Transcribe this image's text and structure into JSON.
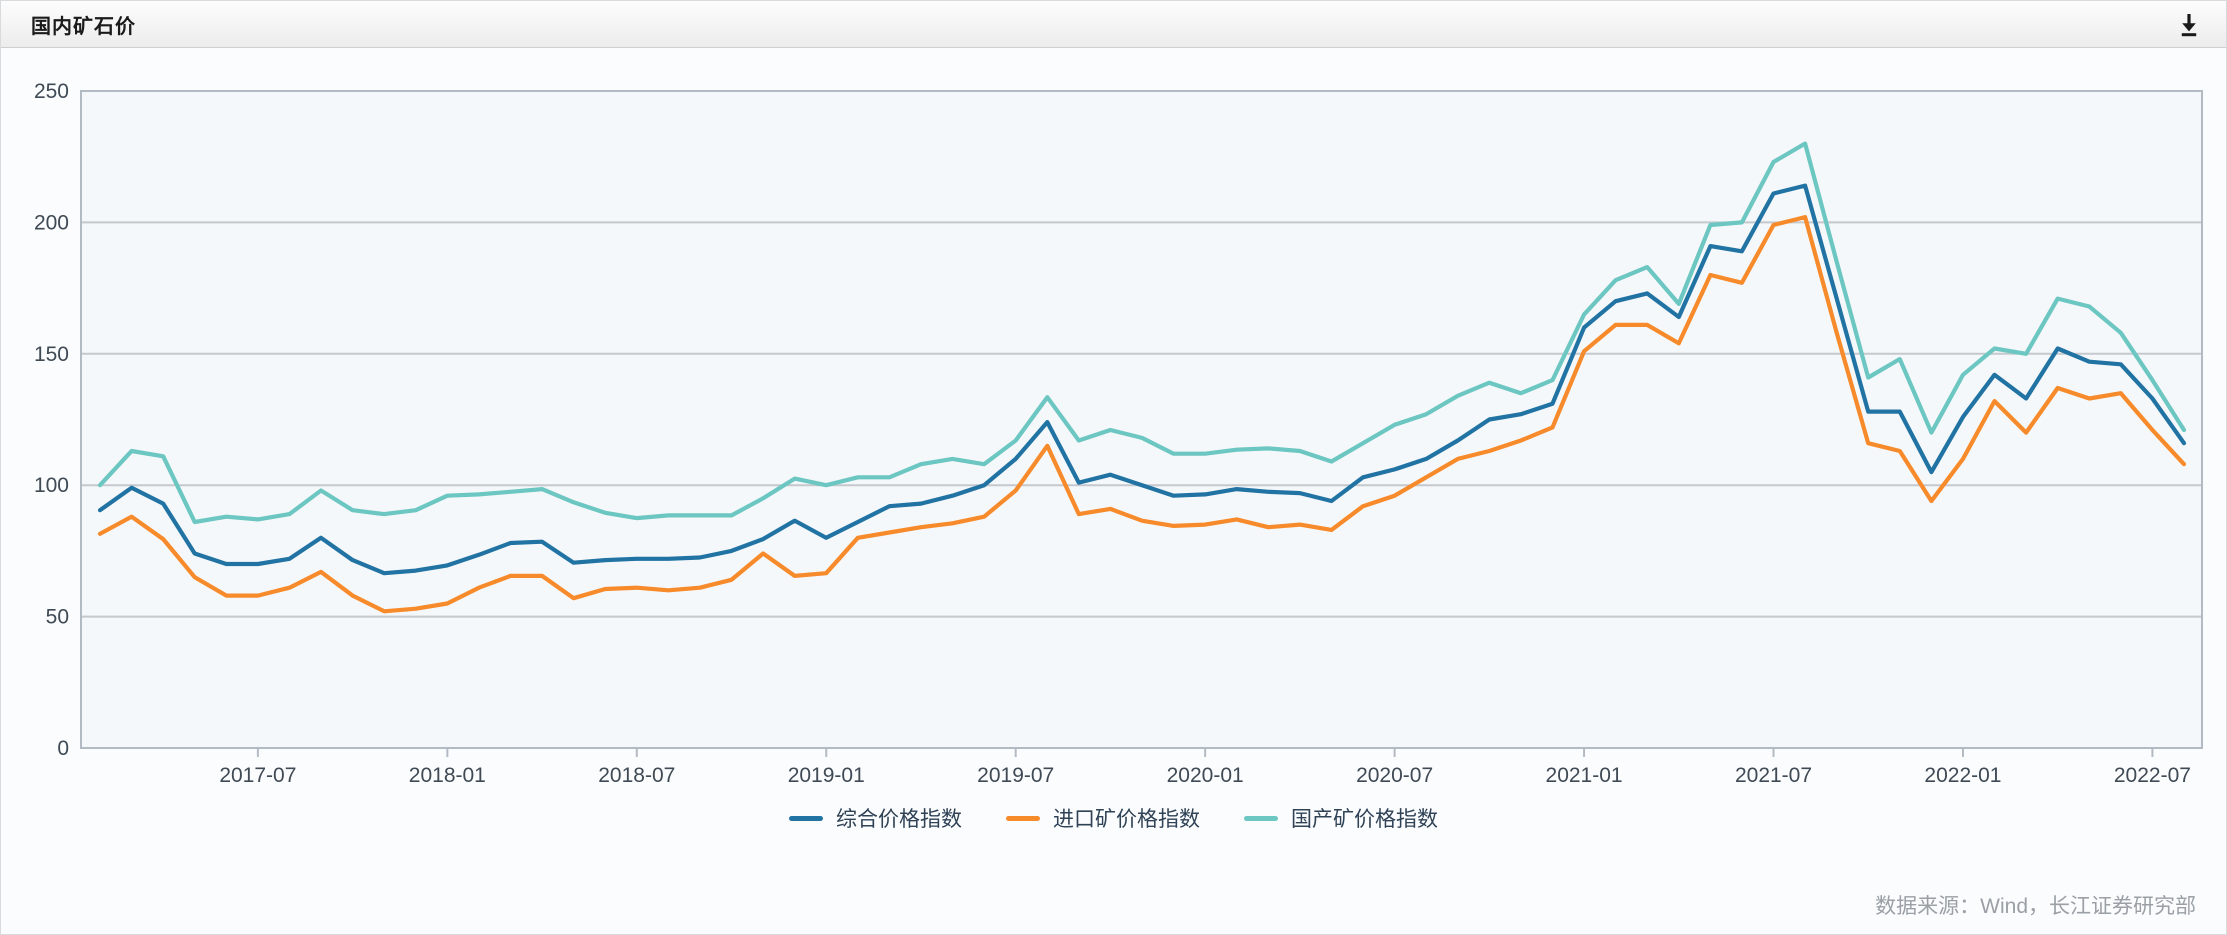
{
  "header": {
    "title": "国内矿石价",
    "download_icon": "download-to-line"
  },
  "footer": {
    "source_text": "数据来源：Wind，长江证券研究部"
  },
  "colors": {
    "composite_blue": "#2173a3",
    "import_orange": "#f78a2a",
    "domestic_teal": "#6cc6c1",
    "grid": "#c5c8cc",
    "plot_border": "#b2bbc4",
    "plot_fill": "#f5f8fa",
    "axis_text": "#3f4a55",
    "legend_text": "#2f4256"
  },
  "chart_data": {
    "type": "line",
    "title": "国内矿石价",
    "xlabel": "",
    "ylabel": "",
    "ylim": [
      0,
      250
    ],
    "yticks": [
      0,
      50,
      100,
      150,
      200,
      250
    ],
    "grid": true,
    "legend_position": "bottom",
    "xtick_labels": [
      {
        "index": 5,
        "label": "2017-07"
      },
      {
        "index": 11,
        "label": "2018-01"
      },
      {
        "index": 17,
        "label": "2018-07"
      },
      {
        "index": 23,
        "label": "2019-01"
      },
      {
        "index": 29,
        "label": "2019-07"
      },
      {
        "index": 35,
        "label": "2020-01"
      },
      {
        "index": 41,
        "label": "2020-07"
      },
      {
        "index": 47,
        "label": "2021-01"
      },
      {
        "index": 53,
        "label": "2021-07"
      },
      {
        "index": 59,
        "label": "2022-01"
      },
      {
        "index": 65,
        "label": "2022-07"
      }
    ],
    "months": [
      "2017-02",
      "2017-03",
      "2017-04",
      "2017-05",
      "2017-06",
      "2017-07",
      "2017-08",
      "2017-09",
      "2017-10",
      "2017-11",
      "2017-12",
      "2018-01",
      "2018-02",
      "2018-03",
      "2018-04",
      "2018-05",
      "2018-06",
      "2018-07",
      "2018-08",
      "2018-09",
      "2018-10",
      "2018-11",
      "2018-12",
      "2019-01",
      "2019-02",
      "2019-03",
      "2019-04",
      "2019-05",
      "2019-06",
      "2019-07",
      "2019-08",
      "2019-09",
      "2019-10",
      "2019-11",
      "2019-12",
      "2020-01",
      "2020-02",
      "2020-03",
      "2020-04",
      "2020-05",
      "2020-06",
      "2020-07",
      "2020-08",
      "2020-09",
      "2020-10",
      "2020-11",
      "2020-12",
      "2021-01",
      "2021-02",
      "2021-03",
      "2021-04",
      "2021-05",
      "2021-06",
      "2021-07",
      "2021-08",
      "2021-09",
      "2021-10",
      "2021-11",
      "2021-12",
      "2022-01",
      "2022-02",
      "2022-03",
      "2022-04",
      "2022-05",
      "2022-06",
      "2022-07",
      "2022-08"
    ],
    "series": [
      {
        "name": "综合价格指数",
        "color": "#2173a3",
        "values": [
          90.5,
          99,
          93,
          74,
          70,
          70,
          72,
          80,
          71.5,
          66.5,
          67.5,
          69.5,
          73.5,
          78,
          78.5,
          70.5,
          71.5,
          72,
          72,
          72.5,
          75,
          79.5,
          86.5,
          80,
          86,
          92,
          93,
          96,
          100,
          110,
          124,
          101,
          104,
          100,
          96,
          96.5,
          98.5,
          97.5,
          97,
          94,
          103,
          106,
          110,
          117,
          125,
          127,
          131,
          160,
          170,
          173,
          164,
          191,
          189,
          211,
          214,
          171,
          128,
          128,
          105,
          126,
          142,
          133,
          152,
          147,
          146,
          133,
          116
        ]
      },
      {
        "name": "进口矿价格指数",
        "color": "#f78a2a",
        "values": [
          81.5,
          88,
          79.5,
          65,
          58,
          58,
          61,
          67,
          58,
          52,
          53,
          55,
          61,
          65.5,
          65.5,
          57,
          60.5,
          61,
          60,
          61,
          64,
          74,
          65.5,
          66.5,
          80,
          82,
          84,
          85.5,
          88,
          98,
          115,
          89,
          91,
          86.5,
          84.5,
          85,
          87,
          84,
          85,
          83,
          92,
          96,
          103,
          110,
          113,
          117,
          122,
          151,
          161,
          161,
          154,
          180,
          177,
          199,
          202,
          158,
          116,
          113,
          94,
          110,
          132,
          120,
          137,
          133,
          135,
          121,
          108
        ]
      },
      {
        "name": "国产矿价格指数",
        "color": "#6cc6c1",
        "values": [
          100,
          113,
          111,
          86,
          88,
          87,
          89,
          98,
          90.5,
          89,
          90.5,
          96,
          96.5,
          97.5,
          98.5,
          93.5,
          89.5,
          87.5,
          88.5,
          88.5,
          88.5,
          95,
          102.5,
          100,
          103,
          103,
          108,
          110,
          108,
          117,
          133.5,
          117,
          121,
          118,
          112,
          112,
          113.5,
          114,
          113,
          109,
          116,
          123,
          127,
          134,
          139,
          135,
          140,
          165,
          178,
          183,
          169,
          199,
          200,
          223,
          230,
          185,
          141,
          148,
          120,
          142,
          152,
          150,
          171,
          168,
          158,
          140,
          121
        ]
      }
    ]
  }
}
